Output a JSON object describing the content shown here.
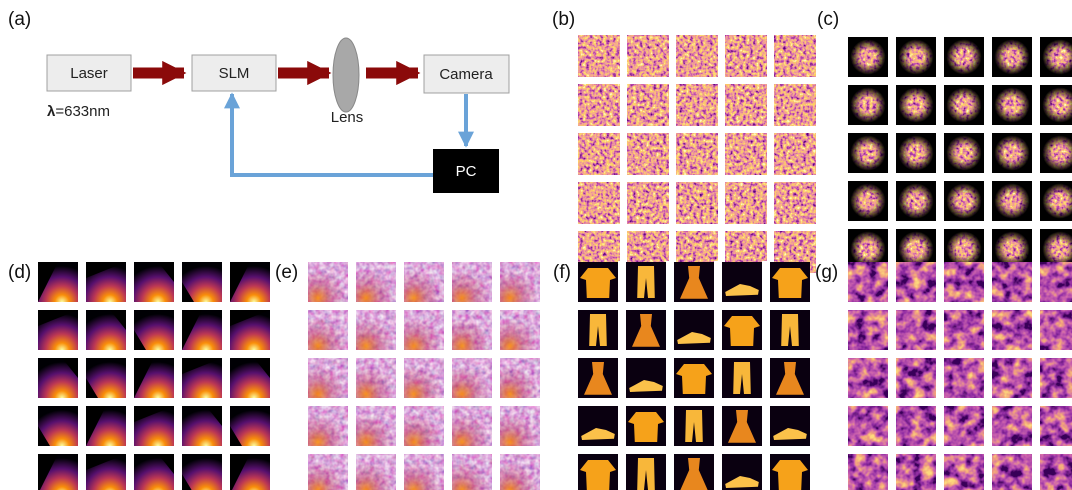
{
  "panels": {
    "a": "(a)",
    "b": "(b)",
    "c": "(c)",
    "d": "(d)",
    "e": "(e)",
    "f": "(f)",
    "g": "(g)"
  },
  "diagram": {
    "laser": "Laser",
    "slm": "SLM",
    "lens": "Lens",
    "camera": "Camera",
    "pc": "PC",
    "lambda_symbol": "λ",
    "wavelength": "=633nm"
  }
}
